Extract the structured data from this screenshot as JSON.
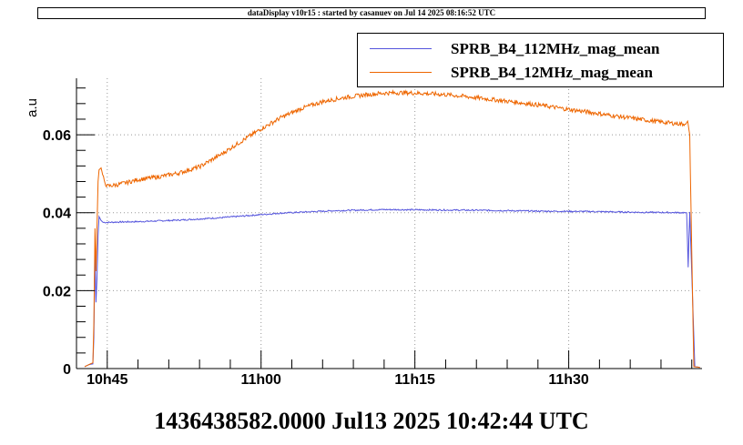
{
  "header": {
    "title": "dataDisplay v10r15 : started by casanuev on Jul 14 2025 08:16:52 UTC"
  },
  "colors": {
    "series_112": "#5555dd",
    "series_12": "#ee6600",
    "grid": "#999999",
    "axis": "#000000"
  },
  "chart_data": {
    "type": "line",
    "xlabel": "1436438582.0000 Jul13 2025 10:42:44 UTC",
    "ylabel": "a.u",
    "xlim": [
      0,
      61
    ],
    "ylim": [
      0,
      0.0745
    ],
    "x_ticks": [
      {
        "value": 3,
        "label": "10h45"
      },
      {
        "value": 18,
        "label": "11h00"
      },
      {
        "value": 33,
        "label": "11h15"
      },
      {
        "value": 48,
        "label": "11h30"
      }
    ],
    "y_ticks": [
      {
        "value": 0,
        "label": "0"
      },
      {
        "value": 0.02,
        "label": "0.02"
      },
      {
        "value": 0.04,
        "label": "0.04"
      },
      {
        "value": 0.06,
        "label": "0.06"
      }
    ],
    "grid": true,
    "legend_position": "top-right",
    "series": [
      {
        "name": "SPRB_B4_112MHz_mag_mean",
        "color": "#5555dd",
        "x": [
          0.8,
          1.2,
          1.6,
          1.7,
          1.8,
          1.9,
          2.0,
          2.1,
          2.2,
          2.3,
          2.4,
          2.6,
          3,
          4,
          6,
          8,
          10,
          12,
          14,
          16,
          18,
          20,
          25,
          30,
          35,
          40,
          45,
          50,
          55,
          59.5,
          59.65,
          59.8,
          60.3,
          60.8
        ],
        "y": [
          0.0005,
          0.001,
          0.0012,
          0.008,
          0.03,
          0.017,
          0.023,
          0.034,
          0.039,
          0.0385,
          0.038,
          0.0375,
          0.0375,
          0.0376,
          0.0377,
          0.0379,
          0.0381,
          0.0384,
          0.0387,
          0.0391,
          0.0395,
          0.0399,
          0.0405,
          0.0408,
          0.0407,
          0.0406,
          0.0404,
          0.0403,
          0.0401,
          0.04,
          0.026,
          0.0402,
          0.0005,
          0.0003
        ]
      },
      {
        "name": "SPRB_B4_12MHz_mag_mean",
        "color": "#ee6600",
        "x": [
          0.8,
          1.2,
          1.6,
          1.7,
          1.8,
          1.9,
          2.0,
          2.1,
          2.2,
          2.4,
          2.7,
          3,
          4,
          5,
          6,
          8,
          10,
          12,
          14,
          16,
          18,
          20,
          22,
          24,
          26,
          28,
          30,
          32,
          34,
          36,
          38,
          40,
          42,
          44,
          46,
          48,
          50,
          52,
          54,
          56,
          58,
          59.4,
          59.6,
          59.8,
          60.2,
          60.8
        ],
        "y": [
          0.0005,
          0.001,
          0.0015,
          0.012,
          0.036,
          0.025,
          0.036,
          0.048,
          0.051,
          0.0515,
          0.048,
          0.0468,
          0.0472,
          0.0478,
          0.0485,
          0.0492,
          0.0502,
          0.0518,
          0.0548,
          0.0582,
          0.0615,
          0.0645,
          0.0668,
          0.0685,
          0.0695,
          0.0702,
          0.0707,
          0.0708,
          0.0706,
          0.0703,
          0.0698,
          0.0692,
          0.0686,
          0.068,
          0.0673,
          0.0665,
          0.0658,
          0.065,
          0.0643,
          0.0636,
          0.063,
          0.0627,
          0.0635,
          0.06,
          0.0005,
          0.0003
        ]
      }
    ]
  }
}
